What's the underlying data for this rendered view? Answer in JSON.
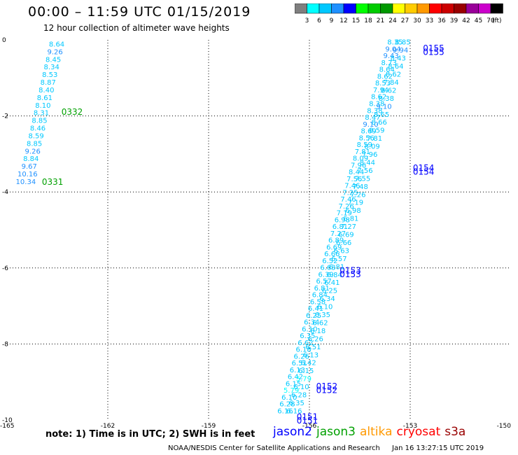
{
  "header": {
    "title": "00:00 – 11:59 UTC 01/15/2019",
    "subtitle": "12 hour collection of altimeter wave heights"
  },
  "colorbar": {
    "labels": [
      "3",
      "6",
      "9",
      "12",
      "15",
      "18",
      "21",
      "24",
      "27",
      "30",
      "33",
      "36",
      "39",
      "42",
      "45",
      "70"
    ],
    "unit": "(ft)",
    "colors": [
      "#7f7f7f",
      "#00ffff",
      "#00c8ff",
      "#1e90ff",
      "#0000ff",
      "#00ff00",
      "#00cc00",
      "#009900",
      "#ffff00",
      "#ffcc00",
      "#ff9900",
      "#ff0000",
      "#cc0000",
      "#990000",
      "#990099",
      "#cc00cc",
      "#000000"
    ]
  },
  "footer": {
    "note": "note:  1) Time is in UTC;  2) SWH is in feet",
    "agency": "NOAA/NESDIS Center for Satellite Applications and Research",
    "timestamp": "Jan 16 13:27:15 UTC 2019"
  },
  "legend": [
    {
      "name": "jason2",
      "color": "#0000ff"
    },
    {
      "name": "jason3",
      "color": "#00a000"
    },
    {
      "name": "altika",
      "color": "#ff9900"
    },
    {
      "name": "cryosat",
      "color": "#ff0000"
    },
    {
      "name": "s3a",
      "color": "#990000"
    }
  ],
  "chart_data": {
    "type": "scatter",
    "xlim": [
      -165,
      -150
    ],
    "ylim": [
      -10,
      0
    ],
    "x_ticks": [
      "-165",
      "-162",
      "-159",
      "-156",
      "-153",
      "-150"
    ],
    "y_ticks": [
      "0",
      "-2",
      "-4",
      "-6",
      "-8",
      "-10"
    ],
    "grid": true,
    "tracks": [
      {
        "satellite": "jason3",
        "color": "#00a000",
        "lon_start": -163.52,
        "lat_start": -0.1,
        "lon_end": -164.44,
        "lat_end": -3.72,
        "values": [
          "8.64",
          "9.26",
          "8.45",
          "8.34",
          "8.53",
          "8.87",
          "8.40",
          "8.61",
          "8.10",
          "8.31",
          "8.85",
          "8.46",
          "8.59",
          "8.85",
          "9.26",
          "8.84",
          "9.67",
          "10.16",
          "10.34"
        ],
        "time_labels": [
          {
            "text": "0332",
            "lon": -163.38,
            "lat": -1.88
          },
          {
            "text": "0331",
            "lon": -163.96,
            "lat": -3.72
          }
        ]
      },
      {
        "satellite": "jason2-a",
        "color": "#0000ff",
        "lon_start": -153.45,
        "lat_start": -0.05,
        "lon_end": -156.72,
        "lat_end": -9.75,
        "values": [
          "8.35",
          "9.04",
          "9.43",
          "8.73",
          "8.64",
          "8.62",
          "8.53",
          "7.94",
          "8.62",
          "8.38",
          "8.38",
          "8.47",
          "9.10",
          "8.69",
          "8.56",
          "8.59",
          "7.81",
          "8.09",
          "7.96",
          "8.44",
          "7.56",
          "7.46",
          "7.25",
          "7.46",
          "7.26",
          "7.19",
          "6.98",
          "6.81",
          "7.27",
          "6.89",
          "6.69",
          "6.66",
          "6.52",
          "6.63",
          "6.39",
          "6.57",
          "6.81",
          "6.84",
          "6.58",
          "6.41",
          "6.25",
          "6.34",
          "6.10",
          "6.35",
          "6.62",
          "6.18",
          "6.26",
          "6.51",
          "6.13",
          "6.42",
          "6.15",
          "5.79",
          "6.10",
          "6.28",
          "6.16"
        ],
        "time_labels": [
          {
            "text": "0155",
            "lon": -152.62,
            "lat": -0.2
          },
          {
            "text": "0154",
            "lon": -152.92,
            "lat": -3.35
          },
          {
            "text": "0153",
            "lon": -155.1,
            "lat": -6.05
          },
          {
            "text": "0152",
            "lon": -155.8,
            "lat": -9.1
          },
          {
            "text": "0151",
            "lon": -156.38,
            "lat": -9.9
          }
        ]
      },
      {
        "satellite": "jason2-b",
        "color": "#0000ff",
        "lon_start": -153.22,
        "lat_start": -0.05,
        "lon_end": -156.45,
        "lat_end": -9.75,
        "values": [
          "8.85",
          "9.94",
          "8.43",
          "8.64",
          "8.62",
          "7.84",
          "8.62",
          "8.38",
          "9.10",
          "8.65",
          "8.66",
          "8.59",
          "7.81",
          "8.09",
          "7.96",
          "8.44",
          "7.56",
          "7.55",
          "7.48",
          "7.26",
          "7.19",
          "6.98",
          "6.81",
          "7.27",
          "6.69",
          "6.66",
          "6.63",
          "6.57",
          "6.81",
          "6.84",
          "6.41",
          "6.25",
          "6.34",
          "6.10",
          "6.35",
          "6.62",
          "6.18",
          "6.26",
          "6.51",
          "6.13",
          "6.42",
          "6.15",
          "5.79",
          "6.10",
          "6.28",
          "6.35",
          "6.16"
        ],
        "time_labels": [
          {
            "text": "0155",
            "lon": -152.62,
            "lat": -0.3
          },
          {
            "text": "0154",
            "lon": -152.92,
            "lat": -3.45
          },
          {
            "text": "0153",
            "lon": -155.1,
            "lat": -6.15
          },
          {
            "text": "0152",
            "lon": -155.8,
            "lat": -9.2
          },
          {
            "text": "0151",
            "lon": -156.38,
            "lat": -10.0
          }
        ]
      }
    ]
  }
}
